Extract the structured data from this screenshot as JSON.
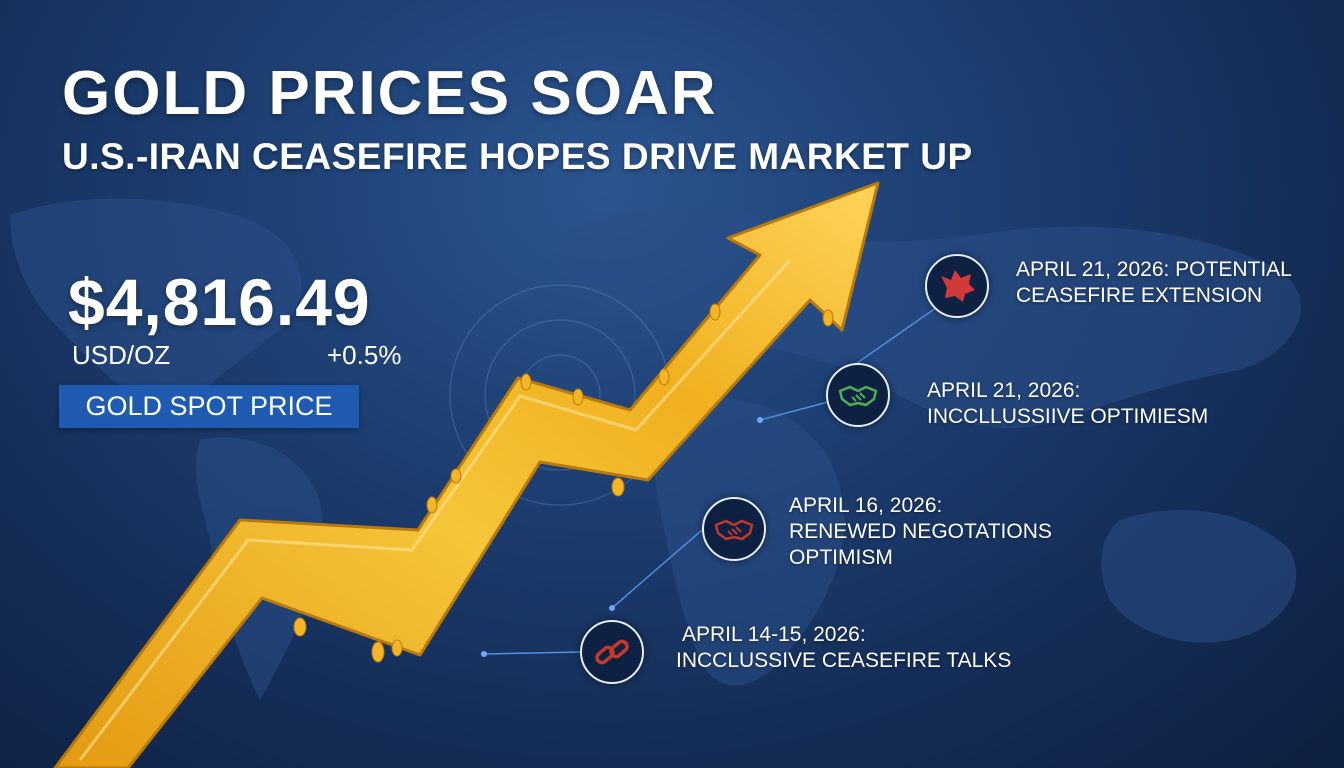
{
  "headline": {
    "title": "GOLD PRICES SOAR",
    "subtitle": "U.S.-IRAN CEASEFIRE HOPES DRIVE MARKET UP"
  },
  "price": {
    "value": "$4,816.49",
    "unit": "USD/OZ",
    "change": "+0.5%",
    "label": "GOLD SPOT PRICE"
  },
  "events": [
    {
      "line1": "APRIL 21, 2026: POTENTIAL",
      "line2": "CEASEFIRE EXTENSION",
      "line3": "",
      "icon": "dove-icon",
      "color": "#d23a3a"
    },
    {
      "line1": "APRIL 21, 2026:",
      "line2": "INCCLLUSSIIVE OPTIMIESM",
      "line3": "",
      "icon": "handshake-icon",
      "color": "#4caf50"
    },
    {
      "line1": "APRIL 16, 2026:",
      "line2": "RENEWED NEGOTATIONS",
      "line3": "OPTIMISM",
      "icon": "handshake-icon",
      "color": "#c0392b"
    },
    {
      "line1": "APRIL 14-15, 2026:",
      "line2": "INCCLUSSIVE CEASEFIRE TALKS",
      "line3": "",
      "icon": "chain-link-icon",
      "color": "#c0392b"
    }
  ],
  "colors": {
    "gold": "#f2b52a",
    "background": "#1d3f72",
    "label_background": "#1f5bb0"
  }
}
